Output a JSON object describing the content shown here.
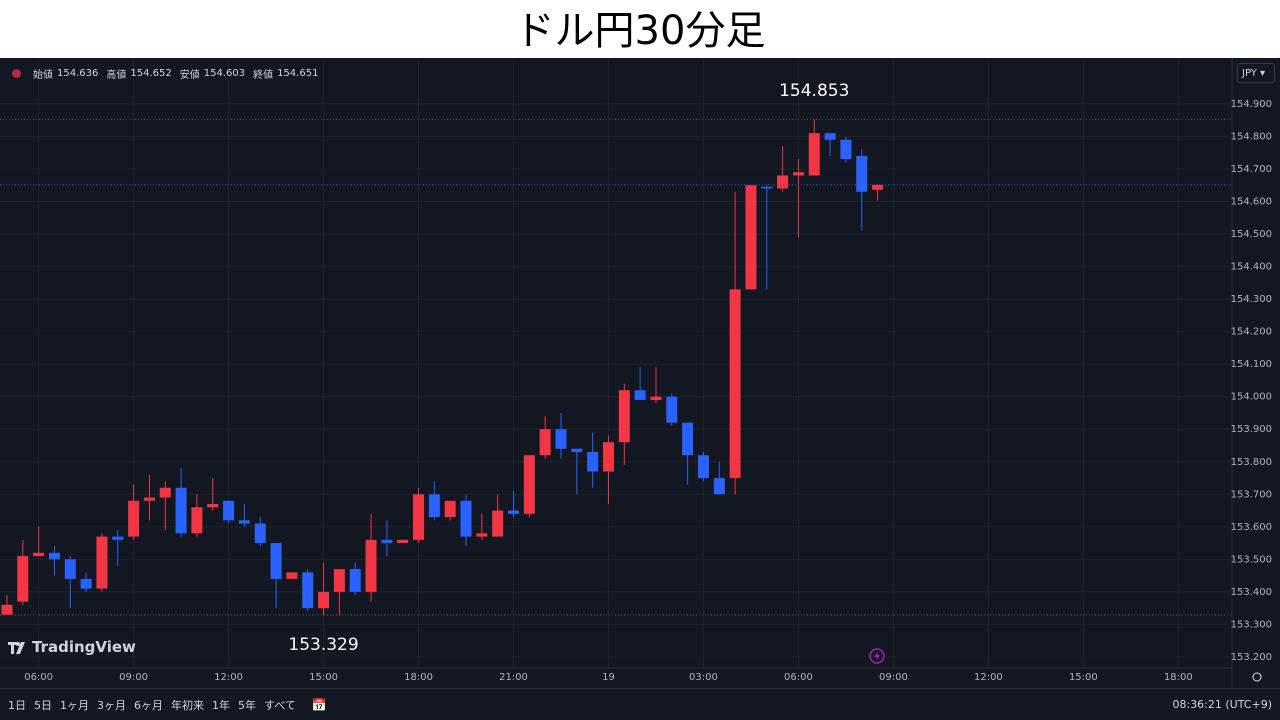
{
  "title": "ドル円30分足",
  "watermark": "TradingView",
  "currency": "JPY",
  "toolbar": {
    "ranges": [
      "1日",
      "5日",
      "1ヶ月",
      "3ヶ月",
      "6ヶ月",
      "年初来",
      "1年",
      "5年",
      "すべて"
    ],
    "clock": "08:36:21 (UTC+9)"
  },
  "chart_data": {
    "type": "candlestick",
    "up_color": "#f23645",
    "down_color": "#2962ff",
    "legend": [
      {
        "label": "始値",
        "value": 154.636
      },
      {
        "label": "高値",
        "value": 154.652
      },
      {
        "label": "安値",
        "value": 154.603
      },
      {
        "label": "終値",
        "value": 154.651
      }
    ],
    "open": [
      153.33,
      153.37,
      153.51,
      153.52,
      153.5,
      153.44,
      153.41,
      153.57,
      153.57,
      153.68,
      153.69,
      153.72,
      153.58,
      153.66,
      153.68,
      153.62,
      153.61,
      153.55,
      153.44,
      153.46,
      153.35,
      153.4,
      153.47,
      153.4,
      153.56,
      153.55,
      153.56,
      153.7,
      153.63,
      153.68,
      153.57,
      153.57,
      153.65,
      153.64,
      153.82,
      153.9,
      153.84,
      153.83,
      153.77,
      153.86,
      154.02,
      153.99,
      154.0,
      153.92,
      153.82,
      153.75,
      153.75,
      154.33,
      154.645,
      154.64,
      154.68,
      154.68,
      154.81,
      154.79,
      154.74,
      154.636
    ],
    "high": [
      153.39,
      153.56,
      153.6,
      153.54,
      153.51,
      153.46,
      153.58,
      153.59,
      153.73,
      153.76,
      153.74,
      153.78,
      153.7,
      153.75,
      153.68,
      153.67,
      153.63,
      153.55,
      153.46,
      153.47,
      153.49,
      153.47,
      153.49,
      153.64,
      153.62,
      153.56,
      153.72,
      153.74,
      153.68,
      153.7,
      153.64,
      153.7,
      153.71,
      153.82,
      153.94,
      153.95,
      153.84,
      153.89,
      153.88,
      154.04,
      154.09,
      154.09,
      154.01,
      153.92,
      153.83,
      153.8,
      154.63,
      154.65,
      154.65,
      154.77,
      154.73,
      154.853,
      154.81,
      154.8,
      154.76,
      154.652
    ],
    "low": [
      153.33,
      153.36,
      153.51,
      153.45,
      153.35,
      153.4,
      153.4,
      153.48,
      153.56,
      153.62,
      153.59,
      153.57,
      153.57,
      153.65,
      153.61,
      153.6,
      153.54,
      153.35,
      153.44,
      153.34,
      153.329,
      153.33,
      153.39,
      153.37,
      153.51,
      153.55,
      153.55,
      153.62,
      153.62,
      153.54,
      153.56,
      153.57,
      153.63,
      153.63,
      153.81,
      153.81,
      153.7,
      153.72,
      153.67,
      153.79,
      153.99,
      153.98,
      153.91,
      153.73,
      153.74,
      153.7,
      153.7,
      154.33,
      154.33,
      154.63,
      154.49,
      154.68,
      154.74,
      154.72,
      154.51,
      154.603
    ],
    "close": [
      153.36,
      153.51,
      153.52,
      153.5,
      153.44,
      153.41,
      153.57,
      153.56,
      153.68,
      153.69,
      153.72,
      153.58,
      153.66,
      153.67,
      153.62,
      153.61,
      153.55,
      153.44,
      153.46,
      153.35,
      153.4,
      153.47,
      153.4,
      153.56,
      153.55,
      153.56,
      153.7,
      153.63,
      153.68,
      153.57,
      153.58,
      153.65,
      153.64,
      153.82,
      153.9,
      153.84,
      153.83,
      153.77,
      153.86,
      154.02,
      153.99,
      154.0,
      153.92,
      153.82,
      153.75,
      153.7,
      154.33,
      154.65,
      154.64,
      154.68,
      154.69,
      154.81,
      154.79,
      154.73,
      154.63,
      154.651
    ],
    "high_annotation": 154.853,
    "low_annotation": 153.329,
    "xlim": [
      -0.44,
      77.39
    ],
    "xticks": [
      {
        "value": 2,
        "label": "06:00"
      },
      {
        "value": 8,
        "label": "09:00"
      },
      {
        "value": 14,
        "label": "12:00"
      },
      {
        "value": 20,
        "label": "15:00"
      },
      {
        "value": 26,
        "label": "18:00"
      },
      {
        "value": 32,
        "label": "21:00"
      },
      {
        "value": 38,
        "label": "19"
      },
      {
        "value": 44,
        "label": "03:00"
      },
      {
        "value": 50,
        "label": "06:00"
      },
      {
        "value": 56,
        "label": "09:00"
      },
      {
        "value": 62,
        "label": "12:00"
      },
      {
        "value": 68,
        "label": "15:00"
      },
      {
        "value": 74,
        "label": "18:00"
      }
    ],
    "ylim": [
      153.166,
      155.035
    ],
    "yticks": [
      {
        "value": 153.2,
        "label": "153.200"
      },
      {
        "value": 153.3,
        "label": "153.300"
      },
      {
        "value": 153.4,
        "label": "153.400"
      },
      {
        "value": 153.5,
        "label": "153.500"
      },
      {
        "value": 153.6,
        "label": "153.600"
      },
      {
        "value": 153.7,
        "label": "153.700"
      },
      {
        "value": 153.8,
        "label": "153.800"
      },
      {
        "value": 153.9,
        "label": "153.900"
      },
      {
        "value": 154.0,
        "label": "154.000"
      },
      {
        "value": 154.1,
        "label": "154.100"
      },
      {
        "value": 154.2,
        "label": "154.200"
      },
      {
        "value": 154.3,
        "label": "154.300"
      },
      {
        "value": 154.4,
        "label": "154.400"
      },
      {
        "value": 154.5,
        "label": "154.500"
      },
      {
        "value": 154.6,
        "label": "154.600"
      },
      {
        "value": 154.7,
        "label": "154.700"
      },
      {
        "value": 154.8,
        "label": "154.800"
      },
      {
        "value": 154.9,
        "label": "154.900"
      }
    ],
    "grid": true
  }
}
